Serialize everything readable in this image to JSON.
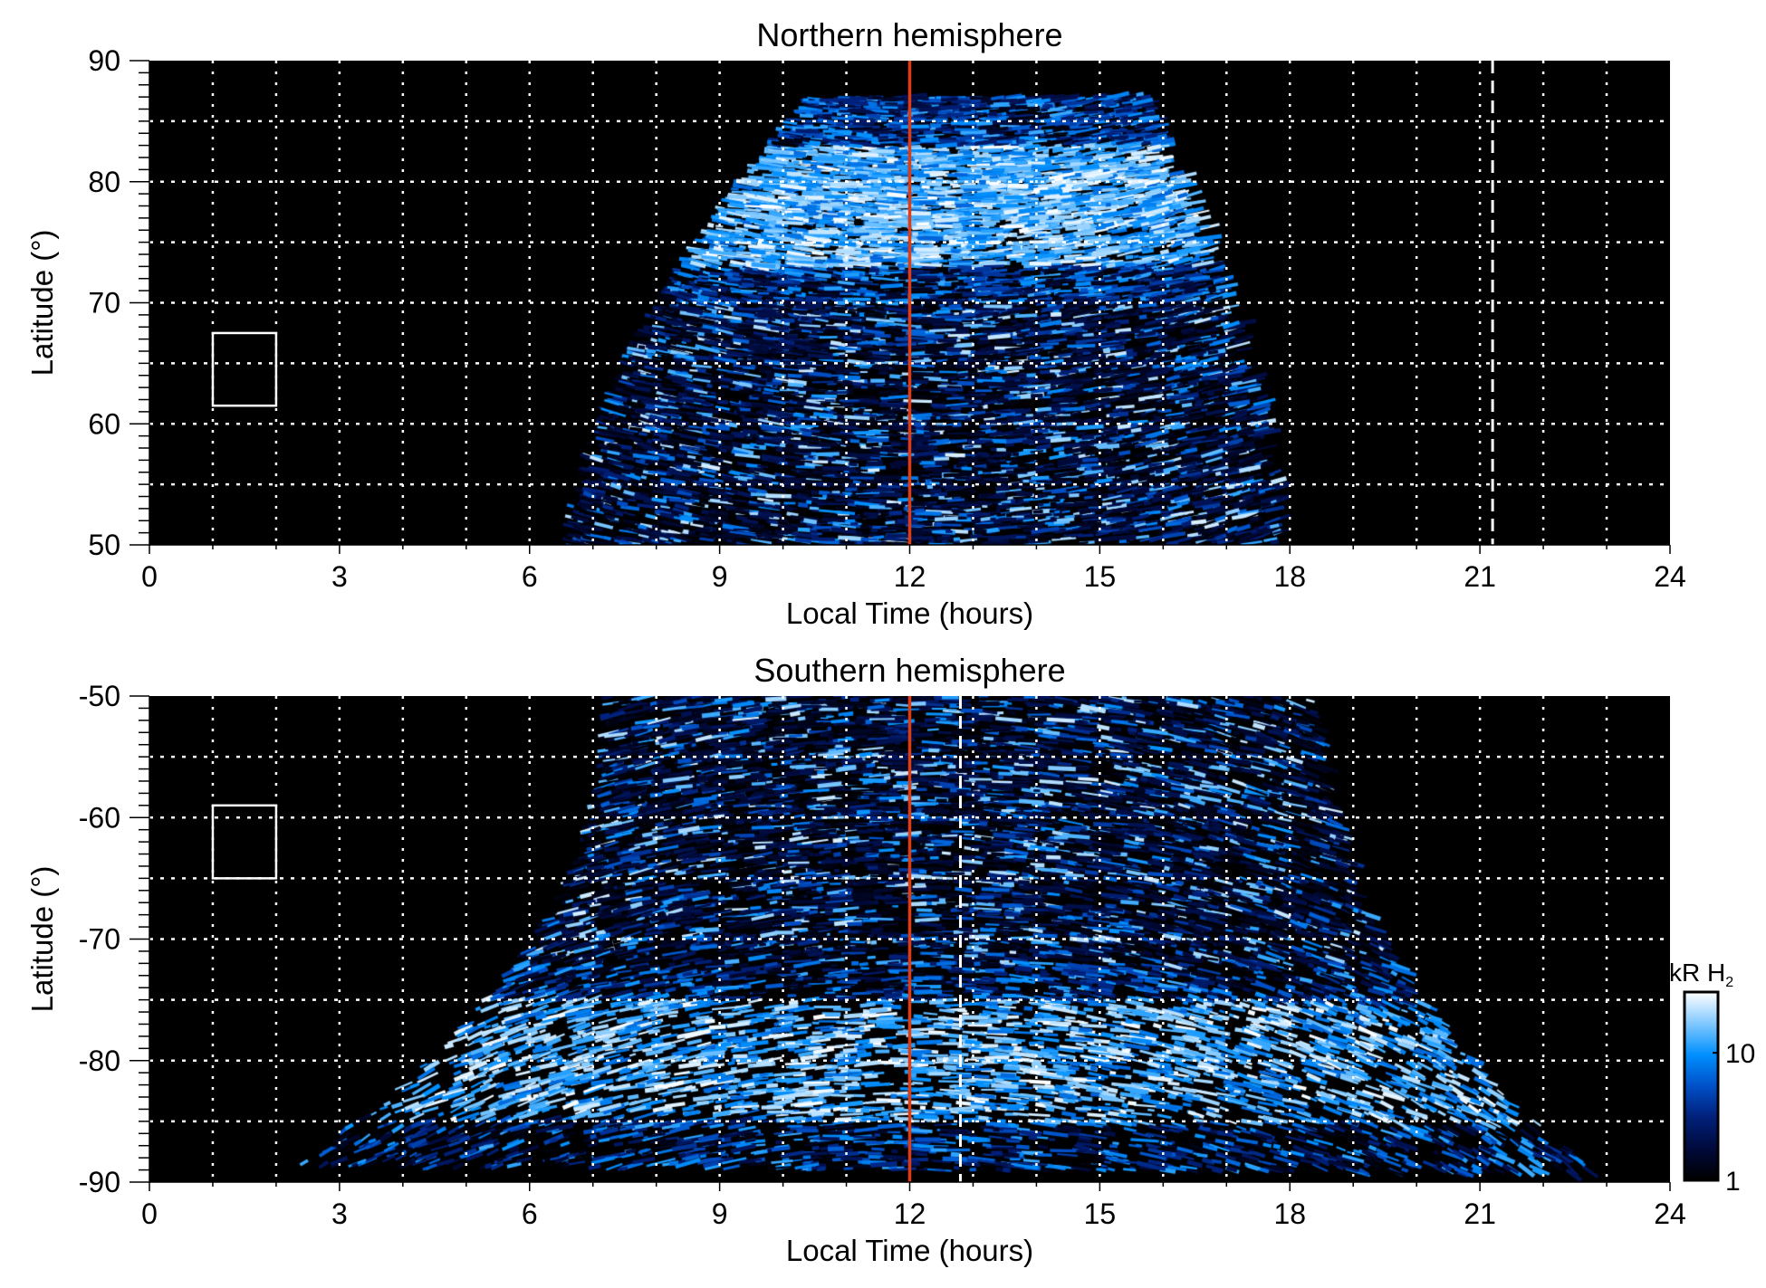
{
  "chart_data": [
    {
      "type": "heatmap",
      "title": "Northern hemisphere",
      "xlabel": "Local Time (hours)",
      "ylabel": "Latitude (°)",
      "xlim": [
        0,
        24
      ],
      "ylim": [
        50,
        90
      ],
      "xticks": [
        0,
        3,
        6,
        9,
        12,
        15,
        18,
        21,
        24
      ],
      "yticks": [
        50,
        60,
        70,
        80,
        90
      ],
      "x_grid_step": 1,
      "y_grid_step": 5,
      "grid": true,
      "background": "#000000",
      "emission_extent": {
        "lt_at_lowest_lat": [
          6.5,
          17.8
        ],
        "lt_at_highest_lat": [
          10.3,
          15.5
        ],
        "max_lat": 87
      },
      "reference_lines": [
        {
          "x": 12,
          "style": "solid",
          "color": "#e03c14"
        },
        {
          "x": 21.2,
          "style": "dashed",
          "color": "#ffffff"
        }
      ],
      "box": {
        "x": [
          1,
          2
        ],
        "y": [
          61.5,
          67.5
        ],
        "color": "#ffffff"
      }
    },
    {
      "type": "heatmap",
      "title": "Southern hemisphere",
      "xlabel": "Local Time (hours)",
      "ylabel": "Latitude (°)",
      "xlim": [
        0,
        24
      ],
      "ylim": [
        -90,
        -50
      ],
      "xticks": [
        0,
        3,
        6,
        9,
        12,
        15,
        18,
        21,
        24
      ],
      "yticks": [
        -90,
        -80,
        -70,
        -60,
        -50
      ],
      "x_grid_step": 1,
      "y_grid_step": 5,
      "grid": true,
      "background": "#000000",
      "emission_extent": {
        "lt_at_highest_lat": [
          7.1,
          18.4
        ],
        "lt_at_lowest_lat": [
          2.2,
          22.8
        ],
        "min_lat": -89
      },
      "reference_lines": [
        {
          "x": 12,
          "style": "solid",
          "color": "#e03c14"
        },
        {
          "x": 12.8,
          "style": "dashed",
          "color": "#ffffff"
        }
      ],
      "box": {
        "x": [
          1,
          2
        ],
        "y": [
          -65,
          -59
        ],
        "color": "#ffffff"
      }
    }
  ],
  "colorbar": {
    "label": "kR H",
    "label_subscript": "2",
    "scale": "log",
    "range": [
      1,
      30
    ],
    "ticks": [
      {
        "value": 1,
        "label": "1"
      },
      {
        "value": 10,
        "label": "10"
      }
    ],
    "colors": [
      "#000000",
      "#000a3c",
      "#00207a",
      "#0050c8",
      "#0090ff",
      "#80c8ff",
      "#ffffff"
    ]
  }
}
